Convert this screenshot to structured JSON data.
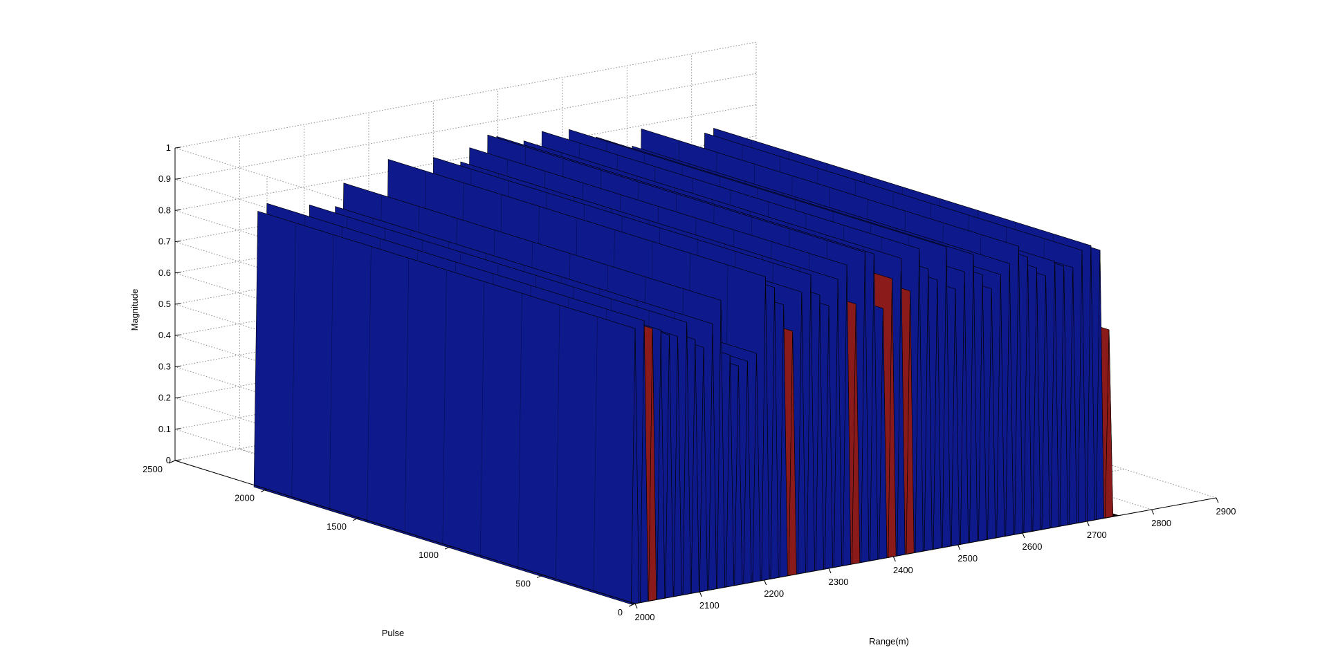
{
  "chart_data": {
    "type": "surface-3d",
    "xlabel": "Range(m)",
    "ylabel": "Pulse",
    "zlabel": "Magnitude",
    "x_ticks": [
      "2000",
      "2100",
      "2200",
      "2300",
      "2400",
      "2500",
      "2600",
      "2700",
      "2800",
      "2900"
    ],
    "y_ticks": [
      "0",
      "500",
      "1000",
      "1500",
      "2000",
      "2500"
    ],
    "z_ticks": [
      "0",
      "0.1",
      "0.2",
      "0.3",
      "0.4",
      "0.5",
      "0.6",
      "0.7",
      "0.8",
      "0.9",
      "1"
    ],
    "xlim": [
      2000,
      2900
    ],
    "ylim": [
      0,
      2500
    ],
    "zlim": [
      0,
      1
    ],
    "grid": true,
    "colors": {
      "peak": "#0e1a8c",
      "edge": "#000000",
      "highlight": "#8b1a1a",
      "floor": "#000000"
    },
    "peaks": [
      {
        "x": 2000,
        "z": 0.88
      },
      {
        "x": 2014,
        "z": 0.9
      },
      {
        "x": 2027,
        "z": 0.87,
        "color": "red"
      },
      {
        "x": 2040,
        "z": 0.86
      },
      {
        "x": 2053,
        "z": 0.84
      },
      {
        "x": 2066,
        "z": 0.83
      },
      {
        "x": 2080,
        "z": 0.87
      },
      {
        "x": 2093,
        "z": 0.81
      },
      {
        "x": 2106,
        "z": 0.78
      },
      {
        "x": 2120,
        "z": 0.85
      },
      {
        "x": 2133,
        "z": 0.92
      },
      {
        "x": 2147,
        "z": 0.74
      },
      {
        "x": 2160,
        "z": 0.7
      },
      {
        "x": 2174,
        "z": 0.71
      },
      {
        "x": 2188,
        "z": 0.73
      },
      {
        "x": 2202,
        "z": 0.97
      },
      {
        "x": 2216,
        "z": 0.93
      },
      {
        "x": 2230,
        "z": 0.87
      },
      {
        "x": 2244,
        "z": 0.78,
        "color": "red"
      },
      {
        "x": 2258,
        "z": 0.9
      },
      {
        "x": 2272,
        "z": 0.95
      },
      {
        "x": 2286,
        "z": 0.88
      },
      {
        "x": 2300,
        "z": 0.84
      },
      {
        "x": 2314,
        "z": 0.92
      },
      {
        "x": 2328,
        "z": 0.96
      },
      {
        "x": 2342,
        "z": 0.83,
        "color": "red"
      },
      {
        "x": 2356,
        "z": 0.99
      },
      {
        "x": 2370,
        "z": 0.98
      },
      {
        "x": 2384,
        "z": 0.8
      },
      {
        "x": 2398,
        "z": 0.89,
        "color": "red"
      },
      {
        "x": 2412,
        "z": 0.95
      },
      {
        "x": 2426,
        "z": 0.84,
        "color": "red"
      },
      {
        "x": 2440,
        "z": 0.97
      },
      {
        "x": 2454,
        "z": 0.9
      },
      {
        "x": 2468,
        "z": 0.86
      },
      {
        "x": 2482,
        "z": 0.96
      },
      {
        "x": 2496,
        "z": 0.82
      },
      {
        "x": 2510,
        "z": 0.87
      },
      {
        "x": 2524,
        "z": 0.92
      },
      {
        "x": 2538,
        "z": 0.85
      },
      {
        "x": 2552,
        "z": 0.8
      },
      {
        "x": 2566,
        "z": 0.84
      },
      {
        "x": 2580,
        "z": 0.87
      },
      {
        "x": 2594,
        "z": 0.92
      },
      {
        "x": 2608,
        "z": 0.88
      },
      {
        "x": 2622,
        "z": 0.84
      },
      {
        "x": 2636,
        "z": 0.81
      },
      {
        "x": 2650,
        "z": 0.85
      },
      {
        "x": 2664,
        "z": 0.83
      },
      {
        "x": 2678,
        "z": 0.82
      },
      {
        "x": 2692,
        "z": 0.87
      },
      {
        "x": 2706,
        "z": 0.88
      },
      {
        "x": 2720,
        "z": 0.86
      },
      {
        "x": 2734,
        "z": 0.6,
        "color": "red"
      }
    ]
  }
}
